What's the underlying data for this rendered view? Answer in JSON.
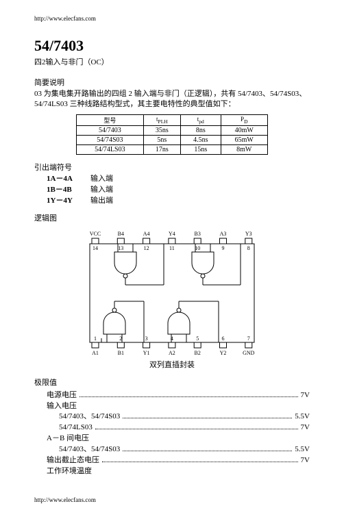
{
  "header_url": "http://www.elecfans.com",
  "footer_url": "http://www.elecfans.com",
  "title": "54/7403",
  "subtitle": "四2输入与非门（OC）",
  "brief_label": "简要说明",
  "desc": "03 为集电集开路输出的四组 2 输入端与非门（正逻辑），共有 54/7403、54/74S03、54/74LS03 三种线路结构型式，其主要电特性的典型值如下：",
  "spec_table": {
    "headers": [
      "型号",
      "t<sub>PLH</sub>",
      "t<sub>pd</sub>",
      "P<sub>D</sub>"
    ],
    "rows": [
      [
        "54/7403",
        "35ns",
        "8ns",
        "40mW"
      ],
      [
        "54/74S03",
        "5ns",
        "4.5ns",
        "65mW"
      ],
      [
        "54/74LS03",
        "17ns",
        "15ns",
        "8mW"
      ]
    ]
  },
  "pins_label": "引出端符号",
  "pins": [
    {
      "label": "1A－4A",
      "desc": "输入端"
    },
    {
      "label": "1B－4B",
      "desc": "输入端"
    },
    {
      "label": "1Y－4Y",
      "desc": "输出端"
    }
  ],
  "logic_label": "逻辑图",
  "diagram": {
    "top_labels": [
      "V<sub>CC</sub>",
      "B4",
      "A4",
      "Y4",
      "B3",
      "A3",
      "Y3"
    ],
    "top_nums": [
      "14",
      "13",
      "12",
      "11",
      "10",
      "9",
      "8"
    ],
    "bot_nums": [
      "1",
      "2",
      "3",
      "4",
      "5",
      "6",
      "7"
    ],
    "bot_labels": [
      "A1",
      "B1",
      "Y1",
      "A2",
      "B2",
      "Y2",
      "GND"
    ]
  },
  "diagram_caption": "双列直插封装",
  "limits_label": "极限值",
  "limits": [
    {
      "indent": 1,
      "label": "电源电压",
      "dots": true,
      "value": "7V"
    },
    {
      "indent": 1,
      "label": "输入电压",
      "dots": false,
      "value": ""
    },
    {
      "indent": 2,
      "label": "54/7403、54/74S03",
      "dots": true,
      "value": "5.5V"
    },
    {
      "indent": 2,
      "label": "54/74LS03",
      "dots": true,
      "value": "7V"
    },
    {
      "indent": 1,
      "label": "A－B 间电压",
      "dots": false,
      "value": ""
    },
    {
      "indent": 2,
      "label": "54/7403、54/74S03",
      "dots": true,
      "value": "5.5V"
    },
    {
      "indent": 1,
      "label": "输出截止态电压",
      "dots": true,
      "value": "7V"
    },
    {
      "indent": 1,
      "label": "工作环境温度",
      "dots": false,
      "value": ""
    }
  ]
}
